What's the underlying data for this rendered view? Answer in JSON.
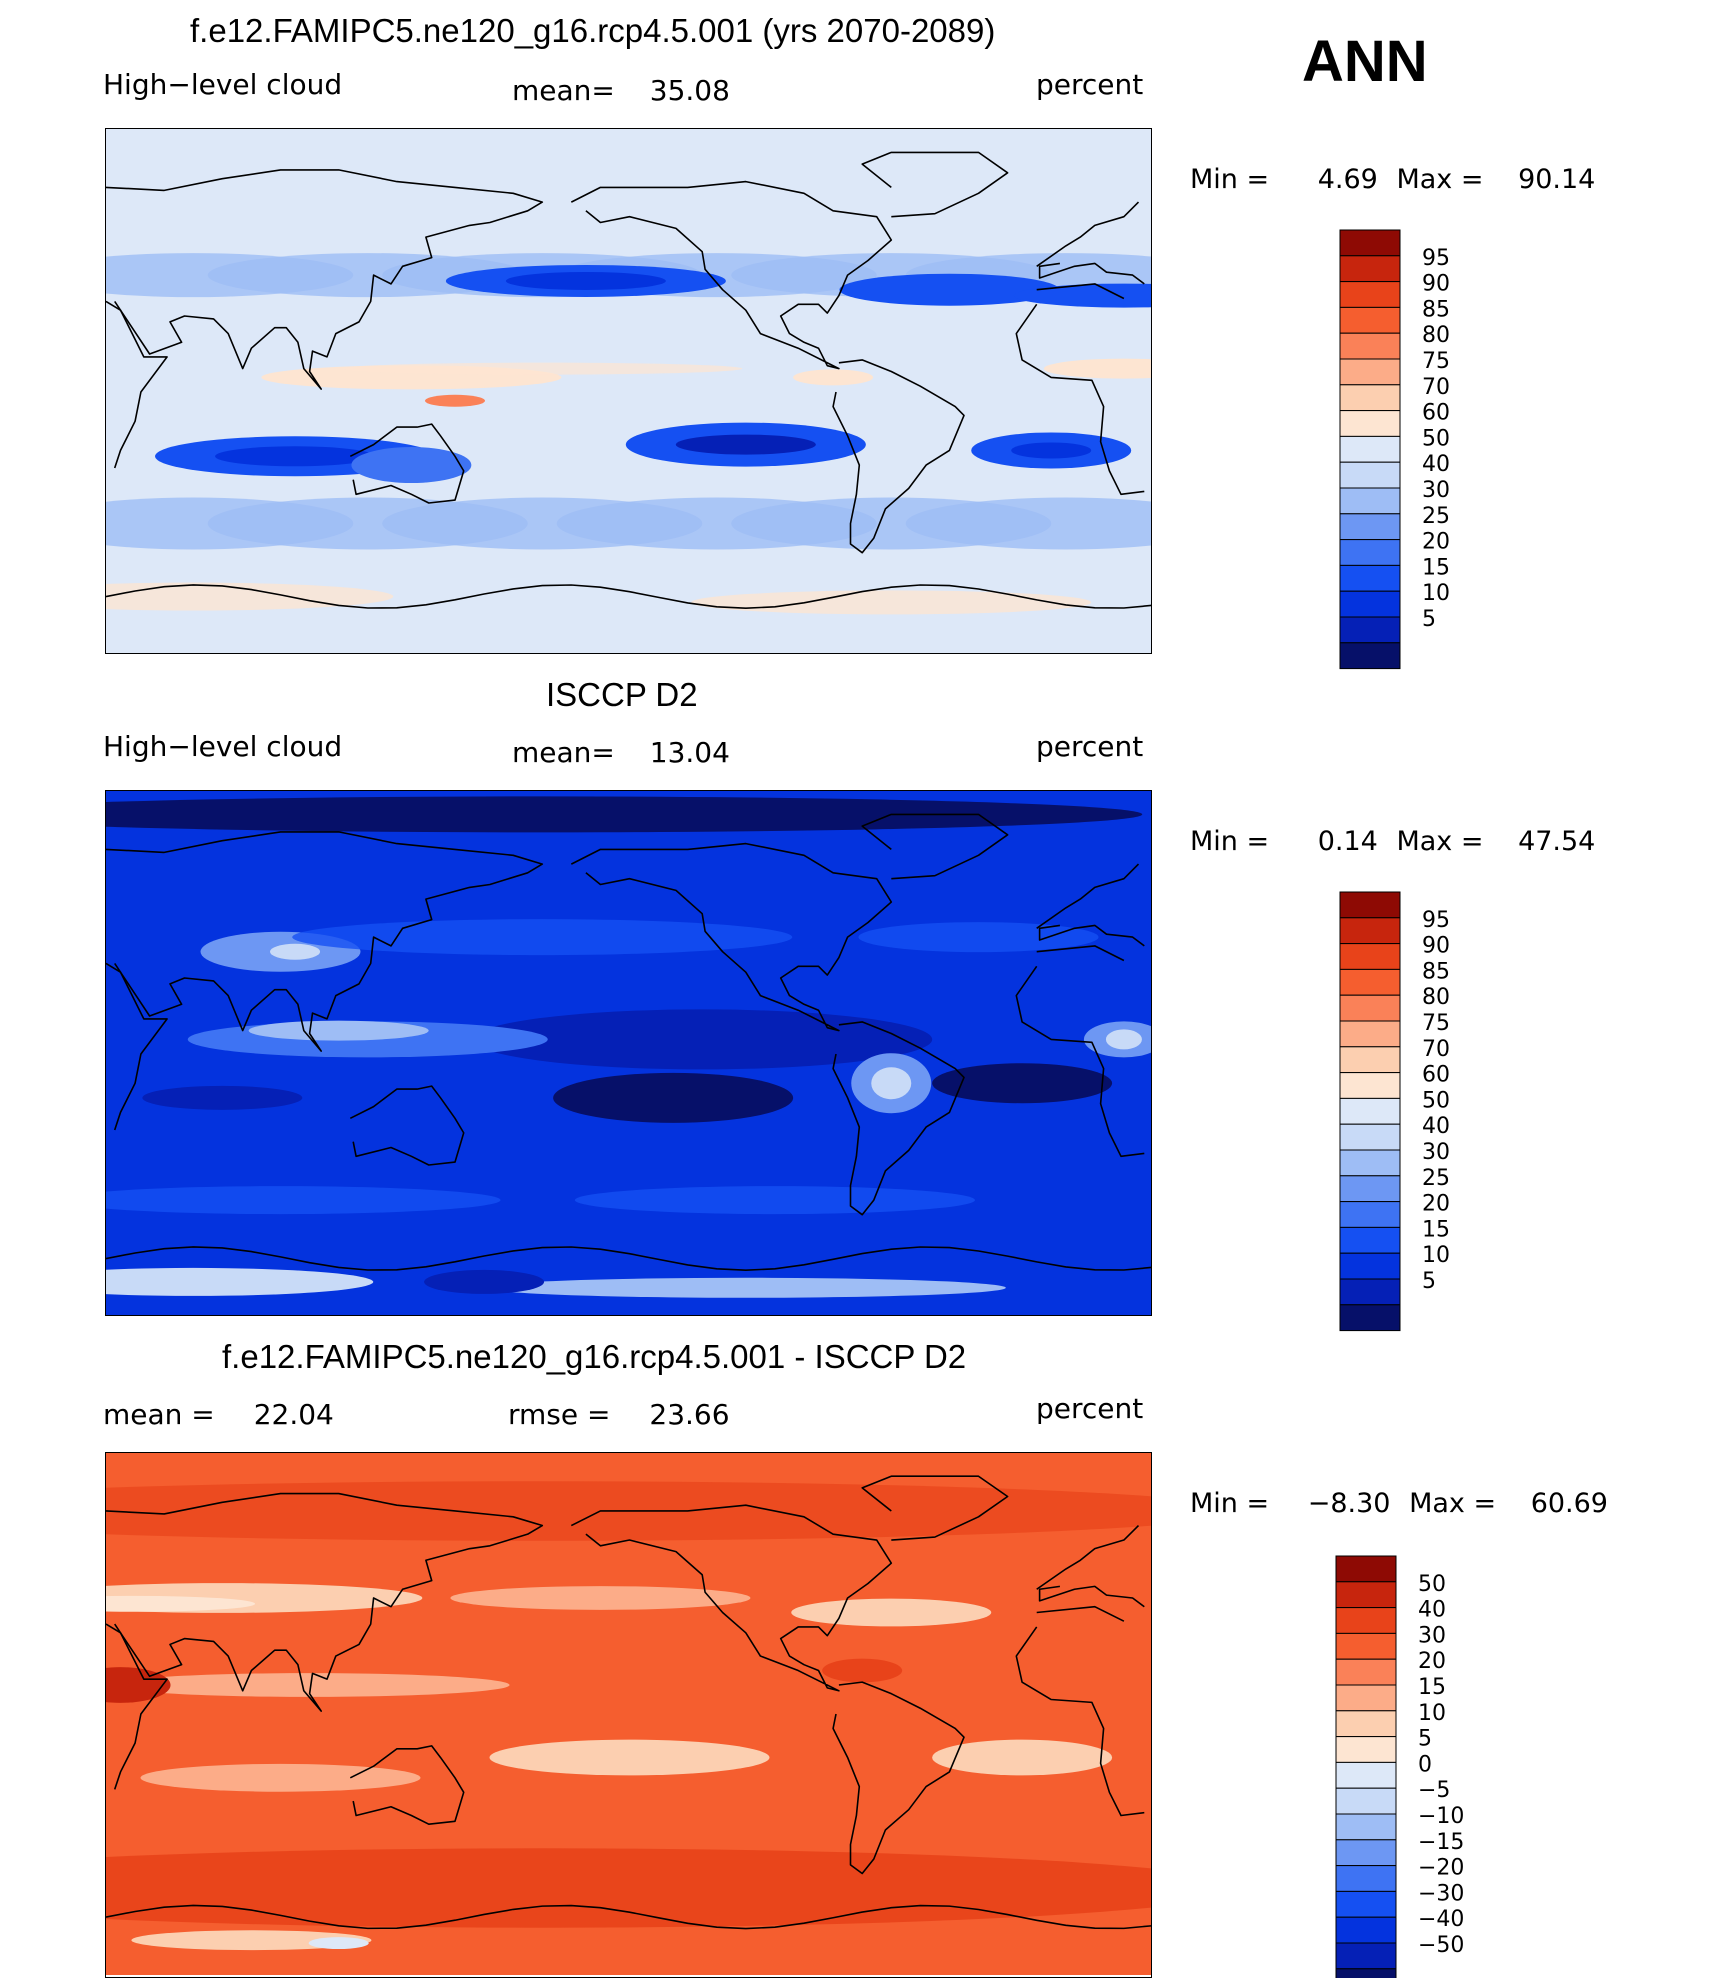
{
  "season": "ANN",
  "colors": {
    "std_levels": [
      "#061069",
      "#0520b6",
      "#0433de",
      "#1550f2",
      "#3e73f3",
      "#6d97f3",
      "#9ebdf5",
      "#c8daf7",
      "#dde8f8",
      "#fde5d2",
      "#fccfb0",
      "#fcac88",
      "#fa8158",
      "#f55e2f",
      "#e8431a",
      "#c7250d",
      "#8e0a04"
    ],
    "diff_levels": [
      "#061069",
      "#0520b6",
      "#0433de",
      "#1550f2",
      "#3e73f3",
      "#6d97f3",
      "#9ebdf5",
      "#c8daf7",
      "#dde8f8",
      "#fde5d2",
      "#fccfb0",
      "#fcac88",
      "#fa8158",
      "#f55e2f",
      "#e8431a",
      "#c7250d",
      "#8e0a04"
    ]
  },
  "panels": [
    {
      "id": "model",
      "title": "f.e12.FAMIPC5.ne120_g16.rcp4.5.001 (yrs 2070-2089)",
      "left_label": "High−level cloud",
      "mean_label": "mean=",
      "mean_value": "35.08",
      "units": "percent",
      "min_label": "Min =",
      "min_value": "4.69",
      "max_label": "Max =",
      "max_value": "90.14",
      "field_style": "model",
      "colorbar_ticks": [
        "95",
        "90",
        "85",
        "80",
        "75",
        "70",
        "60",
        "50",
        "40",
        "30",
        "25",
        "20",
        "15",
        "10",
        "5"
      ]
    },
    {
      "id": "obs",
      "title": "ISCCP D2",
      "left_label": "High−level cloud",
      "mean_label": "mean=",
      "mean_value": "13.04",
      "units": "percent",
      "min_label": "Min =",
      "min_value": "0.14",
      "max_label": "Max =",
      "max_value": "47.54",
      "field_style": "obs",
      "colorbar_ticks": [
        "95",
        "90",
        "85",
        "80",
        "75",
        "70",
        "60",
        "50",
        "40",
        "30",
        "25",
        "20",
        "15",
        "10",
        "5"
      ]
    },
    {
      "id": "diff",
      "title": "f.e12.FAMIPC5.ne120_g16.rcp4.5.001 - ISCCP D2",
      "left_label": "mean =",
      "left_value": "22.04",
      "rmse_label": "rmse =",
      "rmse_value": "23.66",
      "units": "percent",
      "min_label": "Min =",
      "min_value": "−8.30",
      "max_label": "Max =",
      "max_value": "60.69",
      "field_style": "diff",
      "colorbar_ticks": [
        "50",
        "40",
        "30",
        "20",
        "15",
        "10",
        "5",
        "0",
        "−5",
        "−10",
        "−15",
        "−20",
        "−30",
        "−40",
        "−50"
      ]
    }
  ]
}
